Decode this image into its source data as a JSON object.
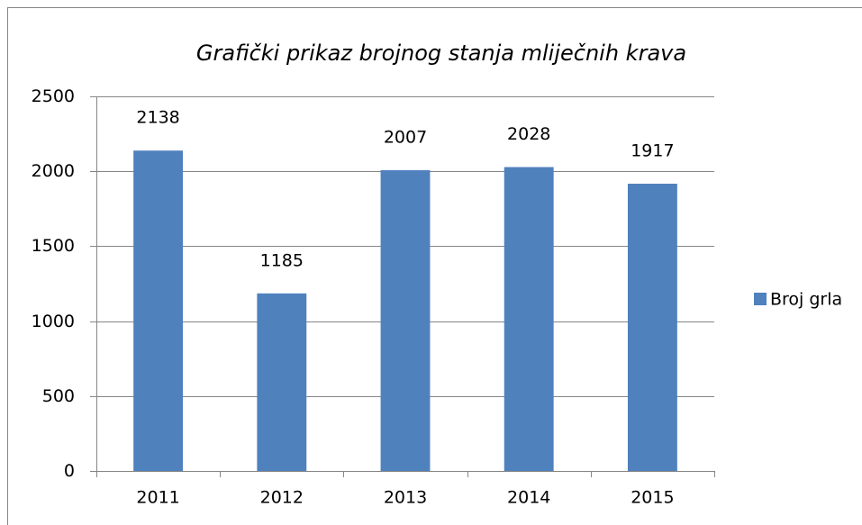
{
  "chart_data": {
    "type": "bar",
    "title": "Grafički prikaz brojnog stanja mliječnih krava",
    "categories": [
      "2011",
      "2012",
      "2013",
      "2014",
      "2015"
    ],
    "series": [
      {
        "name": "Broj grla",
        "color": "#4f81bd",
        "values": [
          2138,
          1185,
          2007,
          2028,
          1917
        ]
      }
    ],
    "ylim": [
      0,
      2500
    ],
    "yticks": [
      0,
      500,
      1000,
      1500,
      2000,
      2500
    ],
    "grid": true,
    "legend": "right"
  }
}
